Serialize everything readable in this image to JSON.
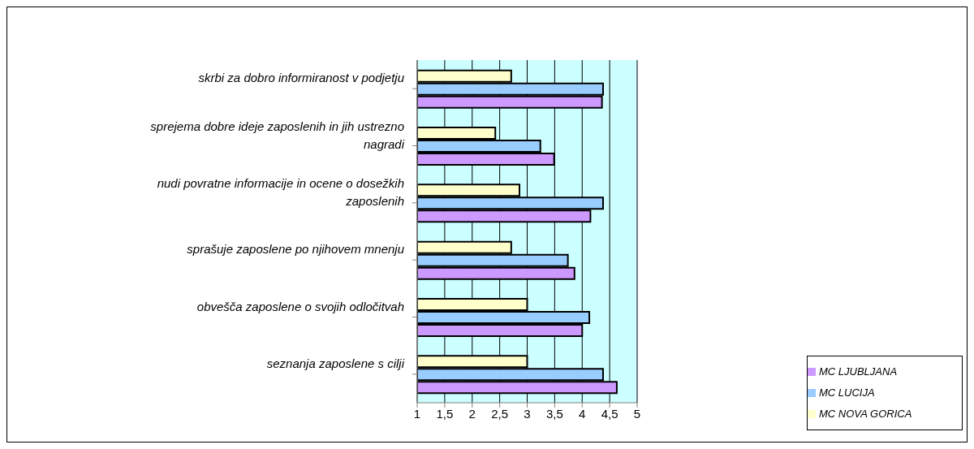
{
  "chart_data": {
    "type": "bar",
    "orientation": "horizontal",
    "categories": [
      "skrbi za dobro informiranost v podjetju",
      "sprejema dobre ideje zaposlenih in jih ustrezno nagradi",
      "nudi povratne informacije in ocene o dosežkih zaposlenih",
      "sprašuje zaposlene po njihovem mnenju",
      "obvešča zaposlene o svojih odločitvah",
      "seznanja zaposlene s cilji"
    ],
    "series": [
      {
        "name": "MC NOVA GORICA",
        "color": "#ffffcc",
        "values": [
          2.71,
          2.42,
          2.86,
          2.71,
          3.0,
          3.0
        ]
      },
      {
        "name": "MC LUCIJA",
        "color": "#99ccff",
        "values": [
          4.38,
          3.24,
          4.38,
          3.74,
          4.13,
          4.38
        ]
      },
      {
        "name": "MC LJUBLJANA",
        "color": "#cc99ff",
        "values": [
          4.36,
          3.49,
          4.15,
          3.86,
          4.0,
          4.63
        ]
      }
    ],
    "xlim": [
      1,
      5
    ],
    "xticks": [
      1,
      {
        "value": 1.5,
        "label": "1,5"
      },
      2,
      {
        "value": 2.5,
        "label": "2,5"
      },
      3,
      {
        "value": 3.5,
        "label": "3,5"
      },
      4,
      {
        "value": 4.5,
        "label": "4,5"
      },
      5
    ],
    "grid": "x",
    "legend": "right"
  }
}
